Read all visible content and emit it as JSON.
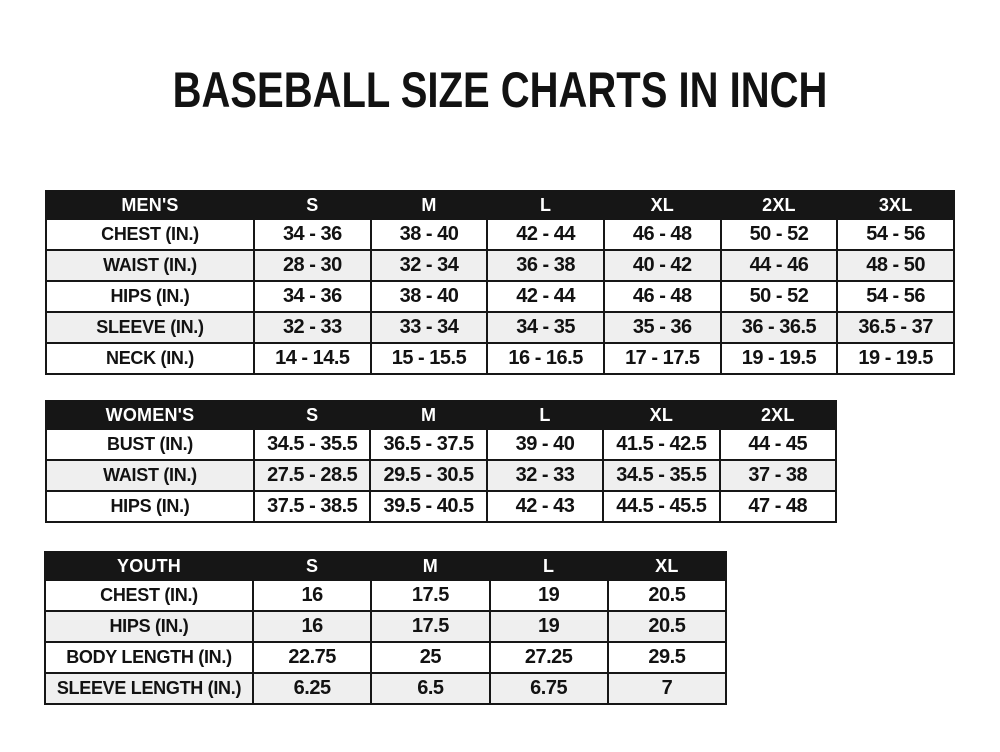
{
  "page": {
    "title": "BASEBALL SIZE CHARTS IN INCH"
  },
  "colors": {
    "page_bg": "#ffffff",
    "text": "#121212",
    "border": "#161616",
    "header_bg": "#161616",
    "header_text": "#ffffff",
    "row_bg": "#ffffff",
    "row_alt_bg": "#efefef"
  },
  "chart_data": [
    {
      "type": "table",
      "title": "MEN'S",
      "columns": [
        "MEN'S",
        "S",
        "M",
        "L",
        "XL",
        "2XL",
        "3XL"
      ],
      "rows": [
        [
          "CHEST (IN.)",
          "34 - 36",
          "38 - 40",
          "42 - 44",
          "46 - 48",
          "50 - 52",
          "54 - 56"
        ],
        [
          "WAIST (IN.)",
          "28 - 30",
          "32 - 34",
          "36 - 38",
          "40 - 42",
          "44 - 46",
          "48 - 50"
        ],
        [
          "HIPS (IN.)",
          "34 - 36",
          "38 - 40",
          "42 - 44",
          "46 - 48",
          "50 - 52",
          "54 - 56"
        ],
        [
          "SLEEVE (IN.)",
          "32 - 33",
          "33 - 34",
          "34 - 35",
          "35 - 36",
          "36 - 36.5",
          "36.5 - 37"
        ],
        [
          "NECK (IN.)",
          "14 - 14.5",
          "15 - 15.5",
          "16 - 16.5",
          "17 - 17.5",
          "19 - 19.5",
          "19 - 19.5"
        ]
      ]
    },
    {
      "type": "table",
      "title": "WOMEN'S",
      "columns": [
        "WOMEN'S",
        "S",
        "M",
        "L",
        "XL",
        "2XL"
      ],
      "rows": [
        [
          "BUST (IN.)",
          "34.5 - 35.5",
          "36.5 - 37.5",
          "39 - 40",
          "41.5 - 42.5",
          "44 - 45"
        ],
        [
          "WAIST (IN.)",
          "27.5 - 28.5",
          "29.5 - 30.5",
          "32 - 33",
          "34.5 - 35.5",
          "37 - 38"
        ],
        [
          "HIPS (IN.)",
          "37.5 - 38.5",
          "39.5 - 40.5",
          "42 - 43",
          "44.5 - 45.5",
          "47 - 48"
        ]
      ]
    },
    {
      "type": "table",
      "title": "YOUTH",
      "columns": [
        "YOUTH",
        "S",
        "M",
        "L",
        "XL"
      ],
      "rows": [
        [
          "CHEST (IN.)",
          "16",
          "17.5",
          "19",
          "20.5"
        ],
        [
          "HIPS (IN.)",
          "16",
          "17.5",
          "19",
          "20.5"
        ],
        [
          "BODY LENGTH (IN.)",
          "22.75",
          "25",
          "27.25",
          "29.5"
        ],
        [
          "SLEEVE LENGTH (IN.)",
          "6.25",
          "6.5",
          "6.75",
          "7"
        ]
      ]
    }
  ]
}
